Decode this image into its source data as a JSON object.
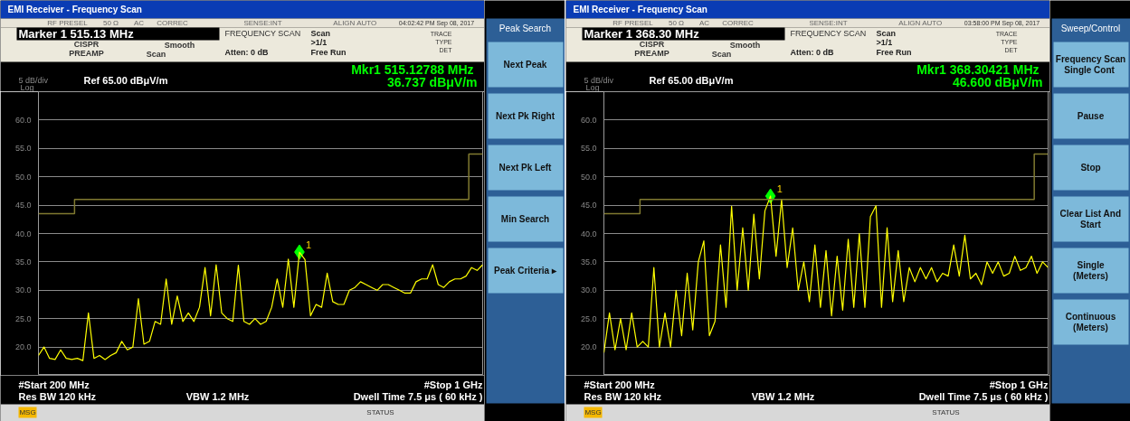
{
  "chart_data": [
    {
      "type": "line",
      "title": "EMI Receiver  - Frequency Scan",
      "categories": [
        null,
        null,
        null,
        null,
        null,
        null,
        null,
        null,
        null,
        null,
        null,
        null,
        null,
        null,
        null,
        null,
        null,
        null,
        null,
        null,
        null,
        null,
        null,
        null,
        null,
        null,
        null,
        null,
        null,
        null,
        null,
        null,
        null,
        null,
        null,
        null,
        null,
        null,
        null,
        null,
        null,
        null,
        null,
        null,
        null,
        null,
        null,
        null,
        null,
        null,
        null,
        null,
        null,
        null,
        null,
        null,
        null,
        null,
        null,
        null,
        null,
        null,
        null,
        null,
        null,
        null,
        null,
        null,
        null,
        null,
        null,
        null,
        null,
        null,
        null,
        null,
        null,
        null,
        null,
        null,
        null
      ],
      "ylim": [
        15,
        65
      ],
      "yticks": [
        {
          "value": 20,
          "label": "20.0"
        },
        {
          "value": 25,
          "label": "25.0"
        },
        {
          "value": 30,
          "label": "30.0"
        },
        {
          "value": 35,
          "label": "35.0"
        },
        {
          "value": 40,
          "label": "40.0"
        },
        {
          "value": 45,
          "label": "45.0"
        },
        {
          "value": 50,
          "label": "50.0"
        },
        {
          "value": 55,
          "label": "55.0"
        },
        {
          "value": 60,
          "label": "60.0"
        }
      ],
      "tick_labels": "y",
      "grid": "y",
      "series": [
        {
          "color": "#ffff00",
          "values": [
            18.5,
            20,
            18,
            17.8,
            19.5,
            18,
            17.8,
            18,
            17.6,
            26,
            18,
            18.5,
            17.8,
            18.5,
            19,
            21,
            19.5,
            20,
            28.5,
            20.5,
            21,
            24.5,
            24,
            32,
            24,
            29,
            24.5,
            26,
            24.5,
            27,
            34,
            25.5,
            34.5,
            26,
            25,
            24.5,
            34.4,
            24.5,
            24,
            25,
            24,
            24.5,
            27,
            32,
            27,
            35.5,
            27,
            36.7,
            35.4,
            25.5,
            27.5,
            27,
            33,
            28,
            27.5,
            27.5,
            30,
            30.5,
            31.5,
            31,
            30.5,
            30,
            31,
            31,
            30.5,
            30,
            29.5,
            29.5,
            31.5,
            32,
            32,
            34.5,
            31,
            30.5,
            31.5,
            32,
            32,
            32.5,
            34,
            33.5,
            34.5
          ]
        },
        {
          "type": "step",
          "color": "#807a30",
          "values": [
            43.5,
            43.5,
            43.5,
            43.5,
            43.5,
            43.5,
            43.5,
            46,
            46,
            46,
            46,
            46,
            46,
            46,
            46,
            46,
            46,
            46,
            46,
            46,
            46,
            46,
            46,
            46,
            46,
            46,
            46,
            46,
            46,
            46,
            46,
            46,
            46,
            46,
            46,
            46,
            46,
            46,
            46,
            46,
            46,
            46,
            46,
            46,
            46,
            46,
            46,
            46,
            46,
            46,
            46,
            46,
            46,
            46,
            46,
            46,
            46,
            46,
            46,
            46,
            46,
            46,
            46,
            46,
            46,
            46,
            46,
            46,
            46,
            46,
            46,
            46,
            46,
            46,
            46,
            46,
            46,
            46,
            54,
            54,
            54
          ]
        },
        {
          "type": "scatter",
          "name": "1",
          "marker": "diamond",
          "color": "#00ff00",
          "values": [
            null,
            null,
            null,
            null,
            null,
            null,
            null,
            null,
            null,
            null,
            null,
            null,
            null,
            null,
            null,
            null,
            null,
            null,
            null,
            null,
            null,
            null,
            null,
            null,
            null,
            null,
            null,
            null,
            null,
            null,
            null,
            null,
            null,
            null,
            null,
            null,
            null,
            null,
            null,
            null,
            null,
            null,
            null,
            null,
            null,
            null,
            null,
            36.737,
            null,
            null,
            null,
            null,
            null,
            null,
            null,
            null,
            null,
            null,
            null,
            null,
            null,
            null,
            null,
            null,
            null,
            null,
            null,
            null,
            null,
            null,
            null,
            null,
            null,
            null,
            null,
            null,
            null,
            null,
            null,
            null,
            null
          ]
        }
      ],
      "annotations": [
        "RF PRESEL",
        "50 Ω",
        "AC",
        "CORREC",
        "SENSE:INT",
        "ALIGN AUTO",
        "04:02:42 PM Sep 08, 2017",
        "Marker 1 515.13 MHz",
        "CISPR",
        "PREAMP",
        "Smooth",
        "Scan",
        "FREQUENCY SCAN",
        "Atten: 0 dB",
        "Scan",
        ">1/1",
        "Free Run",
        "TRACE",
        "TYPE",
        "DET",
        "Mkr1  515.12788 MHz",
        "36.737 dBμV/m",
        "5 dB/div",
        "Ref 65.00 dBμV/m",
        "Log",
        "#Start 200 MHz",
        "#Stop 1 GHz",
        "Res BW 120 kHz",
        "VBW 1.2 MHz",
        "Dwell Time 7.5 μs ( 60 kHz )",
        "MSG",
        "STATUS",
        "Peak Search",
        "Next Peak",
        "Next Pk Right",
        "Next Pk Left",
        "Min Search",
        "Peak Criteria ▸"
      ]
    },
    {
      "type": "line",
      "title": "EMI Receiver  - Frequency Scan",
      "categories": [
        null,
        null,
        null,
        null,
        null,
        null,
        null,
        null,
        null,
        null,
        null,
        null,
        null,
        null,
        null,
        null,
        null,
        null,
        null,
        null,
        null,
        null,
        null,
        null,
        null,
        null,
        null,
        null,
        null,
        null,
        null,
        null,
        null,
        null,
        null,
        null,
        null,
        null,
        null,
        null,
        null,
        null,
        null,
        null,
        null,
        null,
        null,
        null,
        null,
        null,
        null,
        null,
        null,
        null,
        null,
        null,
        null,
        null,
        null,
        null,
        null,
        null,
        null,
        null,
        null,
        null,
        null,
        null,
        null,
        null,
        null,
        null,
        null,
        null,
        null,
        null,
        null,
        null,
        null,
        null,
        null
      ],
      "ylim": [
        15,
        65
      ],
      "yticks": [
        {
          "value": 20,
          "label": "20.0"
        },
        {
          "value": 25,
          "label": "25.0"
        },
        {
          "value": 30,
          "label": "30.0"
        },
        {
          "value": 35,
          "label": "35.0"
        },
        {
          "value": 40,
          "label": "40.0"
        },
        {
          "value": 45,
          "label": "45.0"
        },
        {
          "value": 50,
          "label": "50.0"
        },
        {
          "value": 55,
          "label": "55.0"
        },
        {
          "value": 60,
          "label": "60.0"
        }
      ],
      "tick_labels": "y",
      "grid": "y",
      "series": [
        {
          "color": "#ffff00",
          "values": [
            19,
            26,
            19.5,
            25,
            19.5,
            26,
            20,
            21,
            20,
            34,
            20,
            26,
            20,
            30,
            22,
            33,
            23,
            35,
            38.7,
            22,
            24.5,
            38,
            27,
            44.8,
            30,
            41,
            30,
            43.4,
            32,
            44,
            46.6,
            36,
            46,
            34,
            41,
            30,
            35,
            28,
            38,
            27,
            37,
            25.5,
            36,
            26.5,
            39,
            27,
            40,
            27,
            43,
            44.9,
            27,
            41,
            28,
            37,
            28,
            34,
            31.5,
            34,
            32,
            34,
            31.5,
            33,
            32.5,
            38,
            32.5,
            39.7,
            32,
            33,
            31,
            35,
            33,
            35,
            32.5,
            33,
            36,
            33.5,
            34,
            36,
            33,
            35,
            34
          ]
        },
        {
          "type": "step",
          "color": "#807a30",
          "values": [
            43.5,
            43.5,
            43.5,
            43.5,
            43.5,
            43.5,
            43.5,
            46,
            46,
            46,
            46,
            46,
            46,
            46,
            46,
            46,
            46,
            46,
            46,
            46,
            46,
            46,
            46,
            46,
            46,
            46,
            46,
            46,
            46,
            46,
            46,
            46,
            46,
            46,
            46,
            46,
            46,
            46,
            46,
            46,
            46,
            46,
            46,
            46,
            46,
            46,
            46,
            46,
            46,
            46,
            46,
            46,
            46,
            46,
            46,
            46,
            46,
            46,
            46,
            46,
            46,
            46,
            46,
            46,
            46,
            46,
            46,
            46,
            46,
            46,
            46,
            46,
            46,
            46,
            46,
            46,
            46,
            46,
            54,
            54,
            54
          ]
        },
        {
          "type": "scatter",
          "name": "1",
          "marker": "diamond",
          "color": "#00ff00",
          "values": [
            null,
            null,
            null,
            null,
            null,
            null,
            null,
            null,
            null,
            null,
            null,
            null,
            null,
            null,
            null,
            null,
            null,
            null,
            null,
            null,
            null,
            null,
            null,
            null,
            null,
            null,
            null,
            null,
            null,
            null,
            46.6,
            null,
            null,
            null,
            null,
            null,
            null,
            null,
            null,
            null,
            null,
            null,
            null,
            null,
            null,
            null,
            null,
            null,
            null,
            null,
            null,
            null,
            null,
            null,
            null,
            null,
            null,
            null,
            null,
            null,
            null,
            null,
            null,
            null,
            null,
            null,
            null,
            null,
            null,
            null,
            null,
            null,
            null,
            null,
            null,
            null,
            null,
            null,
            null,
            null,
            null
          ]
        }
      ],
      "annotations": [
        "RF PRESEL",
        "50 Ω",
        "AC",
        "CORREC",
        "SENSE:INT",
        "ALIGN AUTO",
        "03:58:00 PM Sep 08, 2017",
        "Marker 1 368.30 MHz",
        "CISPR",
        "PREAMP",
        "Smooth",
        "Scan",
        "FREQUENCY SCAN",
        "Atten: 0 dB",
        "Scan",
        ">1/1",
        "Free Run",
        "TRACE",
        "TYPE",
        "DET",
        "Mkr1  368.30421 MHz",
        "46.600 dBμV/m",
        "5 dB/div",
        "Ref 65.00 dBμV/m",
        "Log",
        "#Start 200 MHz",
        "#Stop 1 GHz",
        "Res BW 120 kHz",
        "VBW 1.2 MHz",
        "Dwell Time 7.5 μs ( 60 kHz )",
        "MSG",
        "STATUS",
        "Sweep/Control",
        "Frequency Scan\nSingle  Cont",
        "Pause",
        "Stop",
        "Clear List And\nStart",
        "Single\n(Meters)",
        "Continuous\n(Meters)"
      ]
    }
  ]
}
